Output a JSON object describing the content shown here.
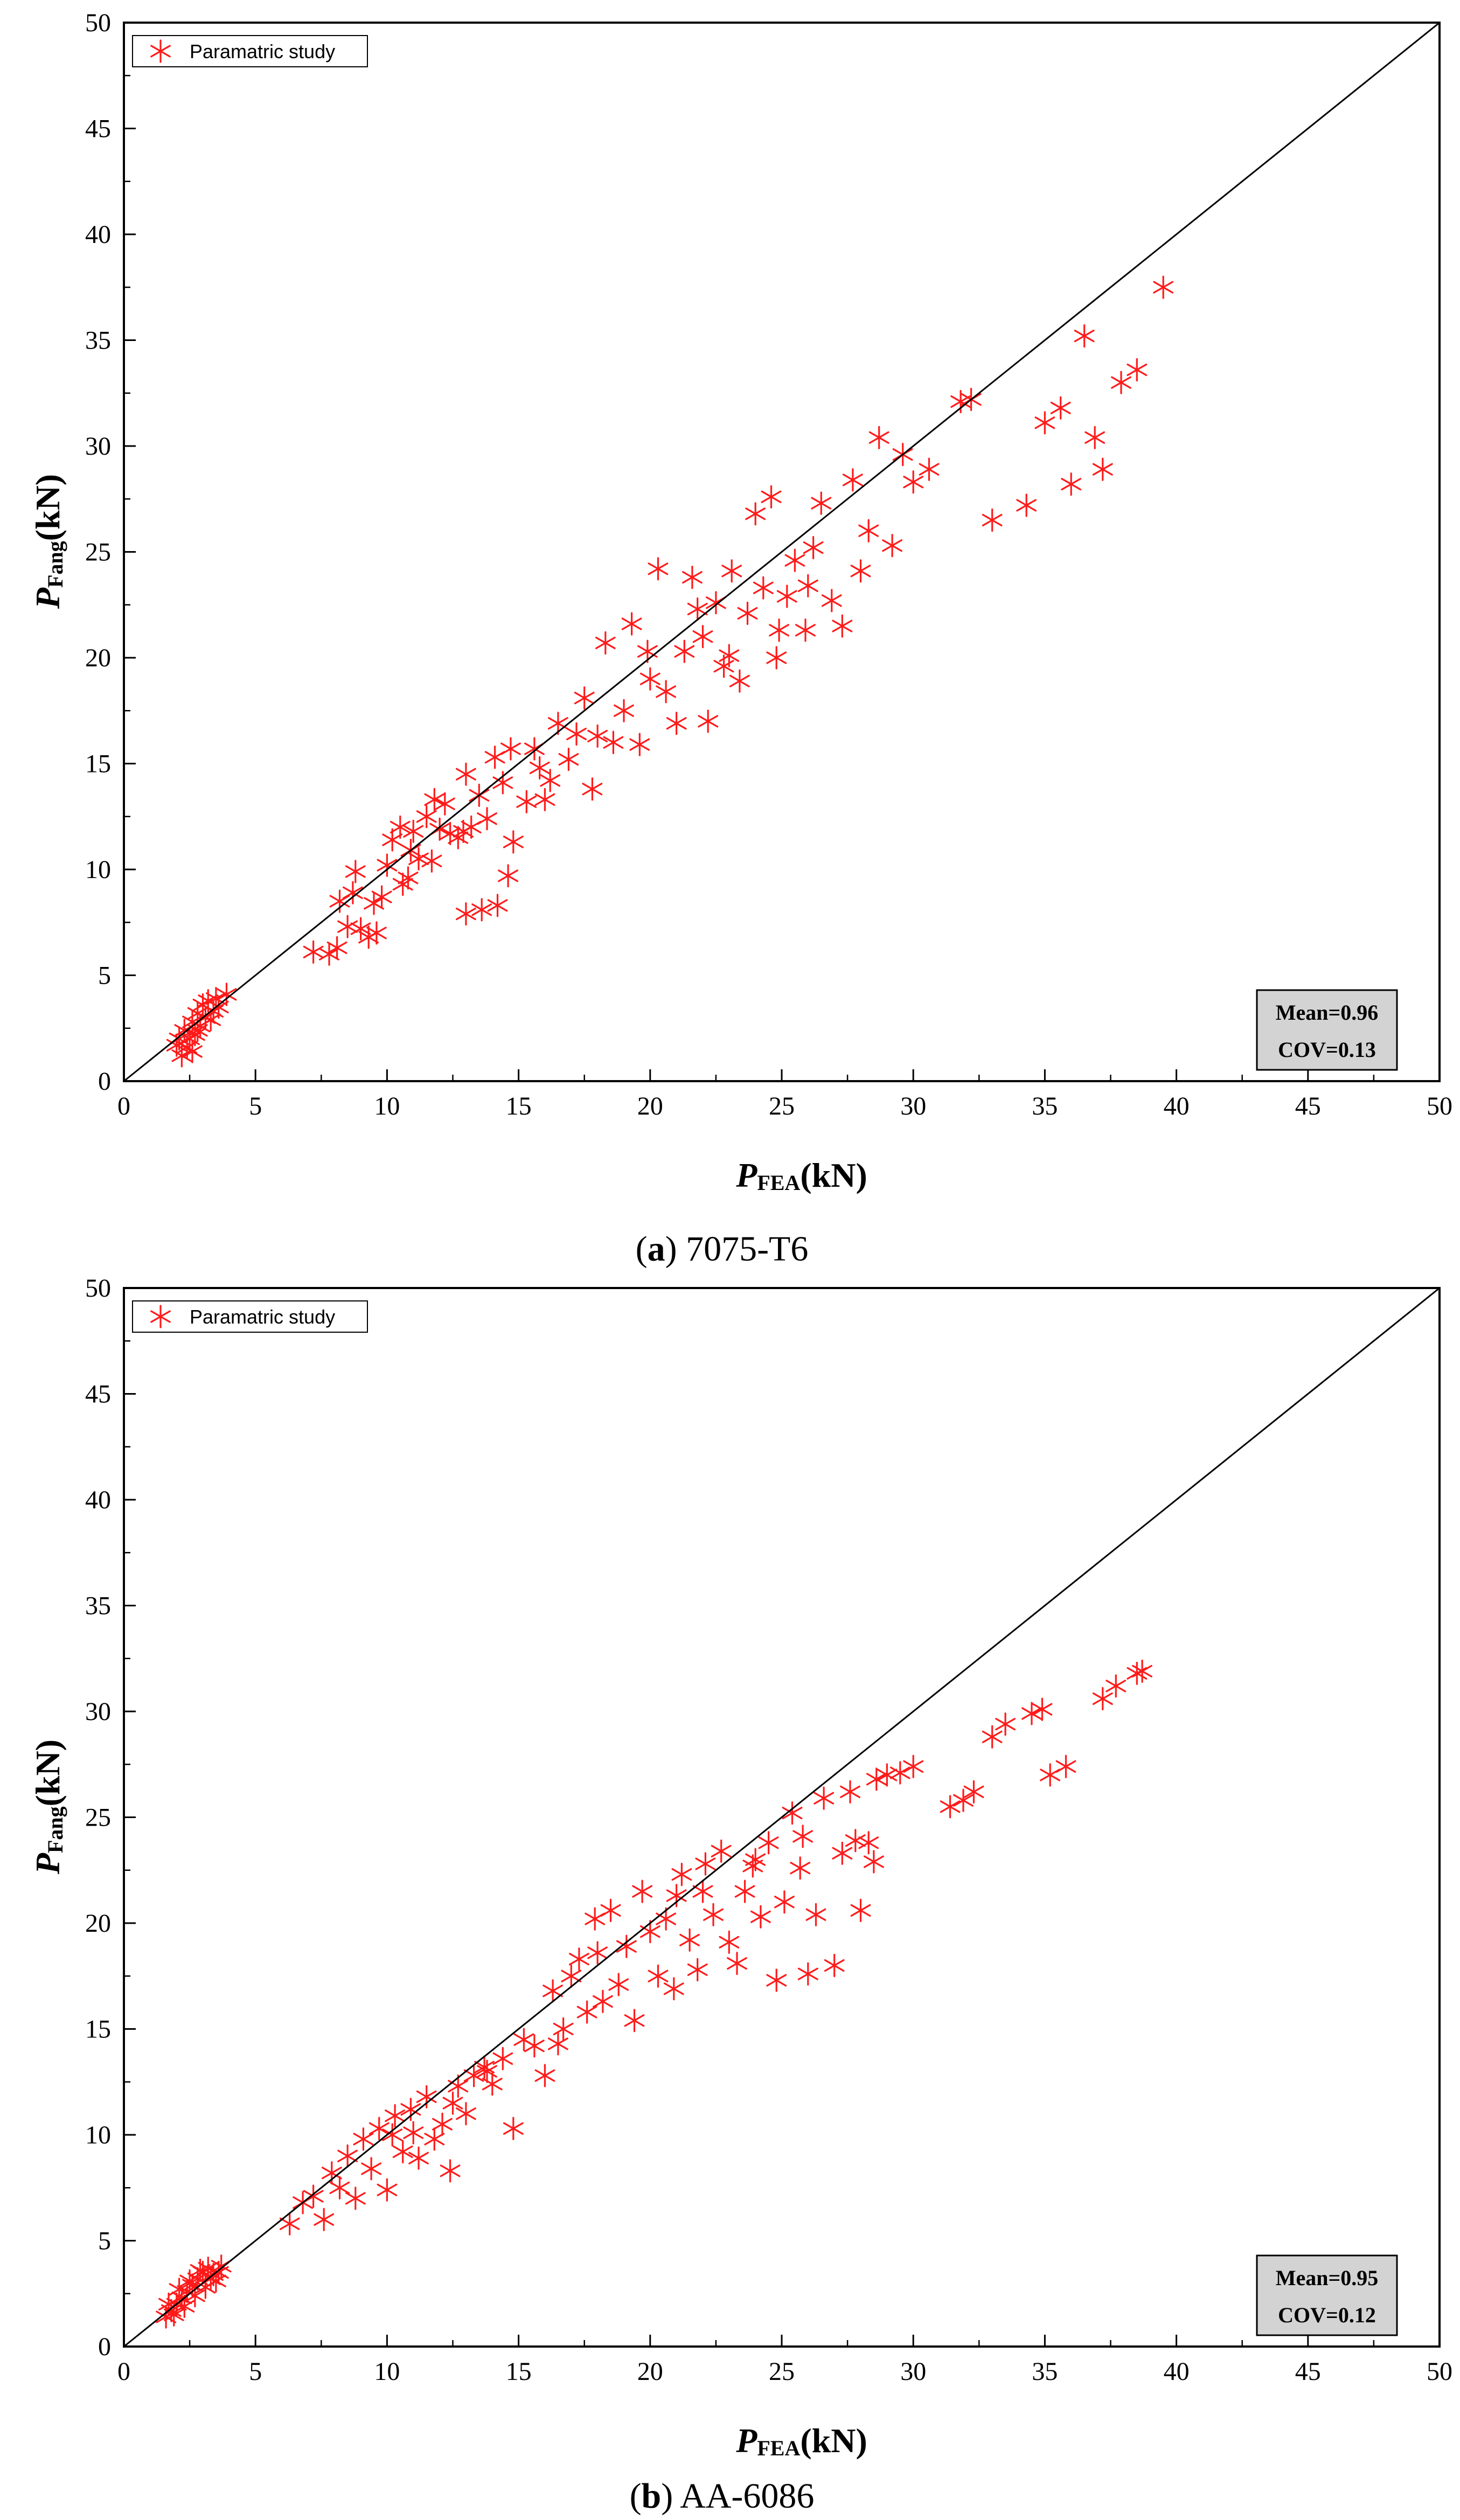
{
  "colors": {
    "marker": "#ff1a1a",
    "axis": "#000000",
    "stats_box": "#d3d3d3",
    "background": "#ffffff"
  },
  "chart_data": [
    {
      "type": "scatter",
      "panel": "a",
      "caption_letter": "a",
      "caption_text": "7075-T6",
      "xlabel_main": "P",
      "xlabel_sub": "FEA",
      "xlabel_unit": "(kN)",
      "ylabel_main": "P",
      "ylabel_sub": "Fang",
      "ylabel_unit": "(kN)",
      "xlim": [
        0,
        50
      ],
      "ylim": [
        0,
        50
      ],
      "xticks": [
        "0",
        "5",
        "10",
        "15",
        "20",
        "25",
        "30",
        "35",
        "40",
        "45",
        "50"
      ],
      "yticks": [
        "0",
        "5",
        "10",
        "15",
        "20",
        "25",
        "30",
        "35",
        "40",
        "45",
        "50"
      ],
      "legend": "Paramatric study",
      "reference_line": "y = x",
      "stats": {
        "mean": "Mean=0.96",
        "cov": "COV=0.13"
      },
      "series": [
        {
          "name": "Paramatric study",
          "points": [
            [
              2.2,
              1.2
            ],
            [
              2.4,
              1.6
            ],
            [
              2.5,
              2.0
            ],
            [
              2.3,
              2.4
            ],
            [
              2.6,
              2.8
            ],
            [
              2.8,
              3.2
            ],
            [
              3.0,
              3.6
            ],
            [
              3.2,
              3.8
            ],
            [
              2.1,
              2.0
            ],
            [
              2.7,
              2.2
            ],
            [
              2.9,
              2.6
            ],
            [
              3.1,
              3.0
            ],
            [
              3.4,
              3.3
            ],
            [
              3.6,
              3.5
            ],
            [
              3.9,
              4.1
            ],
            [
              3.3,
              2.9
            ],
            [
              2.0,
              1.7
            ],
            [
              2.6,
              1.4
            ],
            [
              3.5,
              3.9
            ],
            [
              2.8,
              2.4
            ],
            [
              7.2,
              6.1
            ],
            [
              7.8,
              6.0
            ],
            [
              8.1,
              6.3
            ],
            [
              8.5,
              7.3
            ],
            [
              8.7,
              8.9
            ],
            [
              9.0,
              7.2
            ],
            [
              9.3,
              6.8
            ],
            [
              9.6,
              7.0
            ],
            [
              8.2,
              8.5
            ],
            [
              8.8,
              9.9
            ],
            [
              9.5,
              8.4
            ],
            [
              9.8,
              8.7
            ],
            [
              10.0,
              10.2
            ],
            [
              10.2,
              11.4
            ],
            [
              10.5,
              12.0
            ],
            [
              10.6,
              9.3
            ],
            [
              10.8,
              9.6
            ],
            [
              11.0,
              11.8
            ],
            [
              11.2,
              10.5
            ],
            [
              11.5,
              12.5
            ],
            [
              11.8,
              13.3
            ],
            [
              12.0,
              11.9
            ],
            [
              12.4,
              11.7
            ],
            [
              12.7,
              11.5
            ],
            [
              13.0,
              14.5
            ],
            [
              13.2,
              12.0
            ],
            [
              13.5,
              13.5
            ],
            [
              13.8,
              12.4
            ],
            [
              14.1,
              15.3
            ],
            [
              14.4,
              14.1
            ],
            [
              14.8,
              11.3
            ],
            [
              14.6,
              9.7
            ],
            [
              13.0,
              7.9
            ],
            [
              13.6,
              8.1
            ],
            [
              14.2,
              8.3
            ],
            [
              14.7,
              15.7
            ],
            [
              15.3,
              13.2
            ],
            [
              15.8,
              14.8
            ],
            [
              16.2,
              14.2
            ],
            [
              16.5,
              16.9
            ],
            [
              16.9,
              15.2
            ],
            [
              17.2,
              16.4
            ],
            [
              17.5,
              18.1
            ],
            [
              17.8,
              13.8
            ],
            [
              18.0,
              16.3
            ],
            [
              18.3,
              20.7
            ],
            [
              18.6,
              16.0
            ],
            [
              19.0,
              17.5
            ],
            [
              19.3,
              21.6
            ],
            [
              19.6,
              15.9
            ],
            [
              20.0,
              19.0
            ],
            [
              20.3,
              24.2
            ],
            [
              20.6,
              18.4
            ],
            [
              21.0,
              16.9
            ],
            [
              21.3,
              20.3
            ],
            [
              21.6,
              23.8
            ],
            [
              22.0,
              21.0
            ],
            [
              22.2,
              17.0
            ],
            [
              22.5,
              22.6
            ],
            [
              22.8,
              19.6
            ],
            [
              23.1,
              24.1
            ],
            [
              23.4,
              18.9
            ],
            [
              23.7,
              22.1
            ],
            [
              24.0,
              26.8
            ],
            [
              24.3,
              23.3
            ],
            [
              24.6,
              27.6
            ],
            [
              24.9,
              21.3
            ],
            [
              25.2,
              22.9
            ],
            [
              25.5,
              24.6
            ],
            [
              25.9,
              21.3
            ],
            [
              26.2,
              25.2
            ],
            [
              26.5,
              27.3
            ],
            [
              26.9,
              22.7
            ],
            [
              27.3,
              21.5
            ],
            [
              27.7,
              28.4
            ],
            [
              28.0,
              24.1
            ],
            [
              28.3,
              26.0
            ],
            [
              28.7,
              30.4
            ],
            [
              29.2,
              25.3
            ],
            [
              29.6,
              29.6
            ],
            [
              30.0,
              28.3
            ],
            [
              30.6,
              28.9
            ],
            [
              31.8,
              32.1
            ],
            [
              32.2,
              32.2
            ],
            [
              33.0,
              26.5
            ],
            [
              34.3,
              27.2
            ],
            [
              35.0,
              31.1
            ],
            [
              35.6,
              31.8
            ],
            [
              36.0,
              28.2
            ],
            [
              36.5,
              35.2
            ],
            [
              36.9,
              30.4
            ],
            [
              37.2,
              28.9
            ],
            [
              37.9,
              33.0
            ],
            [
              38.5,
              33.6
            ],
            [
              39.5,
              37.5
            ],
            [
              12.9,
              11.8
            ],
            [
              10.9,
              10.9
            ],
            [
              11.7,
              10.4
            ],
            [
              12.2,
              13.1
            ],
            [
              15.6,
              15.7
            ],
            [
              16.0,
              13.3
            ],
            [
              19.9,
              20.3
            ],
            [
              21.8,
              22.3
            ],
            [
              23.0,
              20.1
            ],
            [
              24.8,
              20.0
            ],
            [
              26.0,
              23.4
            ]
          ]
        }
      ]
    },
    {
      "type": "scatter",
      "panel": "b",
      "caption_letter": "b",
      "caption_text": "AA-6086",
      "xlabel_main": "P",
      "xlabel_sub": "FEA",
      "xlabel_unit": "(kN)",
      "ylabel_main": "P",
      "ylabel_sub": "Fang",
      "ylabel_unit": "(kN)",
      "xlim": [
        0,
        50
      ],
      "ylim": [
        0,
        50
      ],
      "xticks": [
        "0",
        "5",
        "10",
        "15",
        "20",
        "25",
        "30",
        "35",
        "40",
        "45",
        "50"
      ],
      "yticks": [
        "0",
        "5",
        "10",
        "15",
        "20",
        "25",
        "30",
        "35",
        "40",
        "45",
        "50"
      ],
      "legend": "Paramatric study",
      "reference_line": "y = x",
      "stats": {
        "mean": "Mean=0.95",
        "cov": "COV=0.12"
      },
      "series": [
        {
          "name": "Paramatric study",
          "points": [
            [
              1.6,
              1.4
            ],
            [
              1.8,
              1.7
            ],
            [
              2.0,
              2.0
            ],
            [
              2.2,
              2.3
            ],
            [
              2.4,
              2.6
            ],
            [
              2.6,
              2.9
            ],
            [
              2.8,
              3.2
            ],
            [
              3.0,
              3.5
            ],
            [
              3.2,
              3.7
            ],
            [
              3.4,
              3.4
            ],
            [
              3.6,
              3.5
            ],
            [
              1.9,
              1.5
            ],
            [
              2.3,
              1.9
            ],
            [
              2.7,
              2.4
            ],
            [
              3.1,
              2.8
            ],
            [
              3.5,
              3.1
            ],
            [
              2.1,
              2.7
            ],
            [
              2.5,
              3.1
            ],
            [
              2.9,
              3.6
            ],
            [
              3.3,
              3.2
            ],
            [
              1.7,
              2.0
            ],
            [
              3.7,
              3.8
            ],
            [
              6.3,
              5.8
            ],
            [
              6.8,
              6.8
            ],
            [
              7.2,
              7.1
            ],
            [
              7.6,
              6.0
            ],
            [
              7.9,
              8.2
            ],
            [
              8.2,
              7.5
            ],
            [
              8.5,
              9.0
            ],
            [
              8.8,
              7.0
            ],
            [
              9.1,
              9.8
            ],
            [
              9.4,
              8.4
            ],
            [
              9.7,
              10.3
            ],
            [
              10.0,
              7.4
            ],
            [
              10.3,
              10.9
            ],
            [
              10.6,
              9.2
            ],
            [
              10.9,
              11.2
            ],
            [
              11.2,
              8.9
            ],
            [
              11.5,
              11.8
            ],
            [
              11.8,
              9.8
            ],
            [
              12.1,
              10.5
            ],
            [
              12.4,
              8.3
            ],
            [
              12.7,
              12.3
            ],
            [
              13.0,
              11.0
            ],
            [
              13.3,
              12.8
            ],
            [
              13.7,
              13.2
            ],
            [
              14.0,
              12.4
            ],
            [
              14.4,
              13.6
            ],
            [
              14.8,
              10.3
            ],
            [
              15.2,
              14.5
            ],
            [
              15.6,
              14.2
            ],
            [
              16.0,
              12.8
            ],
            [
              16.3,
              16.8
            ],
            [
              16.7,
              15.0
            ],
            [
              17.0,
              17.5
            ],
            [
              17.3,
              18.3
            ],
            [
              17.6,
              15.8
            ],
            [
              17.9,
              20.2
            ],
            [
              18.2,
              16.3
            ],
            [
              18.5,
              20.6
            ],
            [
              18.8,
              17.1
            ],
            [
              19.1,
              18.9
            ],
            [
              19.4,
              15.4
            ],
            [
              19.7,
              21.5
            ],
            [
              20.0,
              19.6
            ],
            [
              20.3,
              17.5
            ],
            [
              20.6,
              20.2
            ],
            [
              20.9,
              16.9
            ],
            [
              21.2,
              22.3
            ],
            [
              21.5,
              19.2
            ],
            [
              21.8,
              17.8
            ],
            [
              22.1,
              22.8
            ],
            [
              22.4,
              20.4
            ],
            [
              22.7,
              23.4
            ],
            [
              23.0,
              19.1
            ],
            [
              23.3,
              18.1
            ],
            [
              23.6,
              21.5
            ],
            [
              23.9,
              22.7
            ],
            [
              24.2,
              20.3
            ],
            [
              24.5,
              23.8
            ],
            [
              24.8,
              17.3
            ],
            [
              25.1,
              21.0
            ],
            [
              25.4,
              25.2
            ],
            [
              25.7,
              22.6
            ],
            [
              26.0,
              17.6
            ],
            [
              26.3,
              20.4
            ],
            [
              26.6,
              25.9
            ],
            [
              27.0,
              18.0
            ],
            [
              27.3,
              23.3
            ],
            [
              27.6,
              26.2
            ],
            [
              28.0,
              20.6
            ],
            [
              28.3,
              23.8
            ],
            [
              28.6,
              26.8
            ],
            [
              29.0,
              27.0
            ],
            [
              29.5,
              27.1
            ],
            [
              30.0,
              27.4
            ],
            [
              31.4,
              25.5
            ],
            [
              31.9,
              25.8
            ],
            [
              32.3,
              26.2
            ],
            [
              33.0,
              28.8
            ],
            [
              33.5,
              29.4
            ],
            [
              34.5,
              29.9
            ],
            [
              34.9,
              30.1
            ],
            [
              35.2,
              27.0
            ],
            [
              35.8,
              27.4
            ],
            [
              37.2,
              30.6
            ],
            [
              37.7,
              31.2
            ],
            [
              38.5,
              31.8
            ],
            [
              38.7,
              31.9
            ],
            [
              10.2,
              10.0
            ],
            [
              11.0,
              10.1
            ],
            [
              12.5,
              11.5
            ],
            [
              13.8,
              13.0
            ],
            [
              16.5,
              14.3
            ],
            [
              18.0,
              18.6
            ],
            [
              21.0,
              21.3
            ],
            [
              22.0,
              21.5
            ],
            [
              24.0,
              23.0
            ],
            [
              25.8,
              24.1
            ],
            [
              27.8,
              23.9
            ],
            [
              28.5,
              22.9
            ]
          ]
        }
      ]
    }
  ]
}
